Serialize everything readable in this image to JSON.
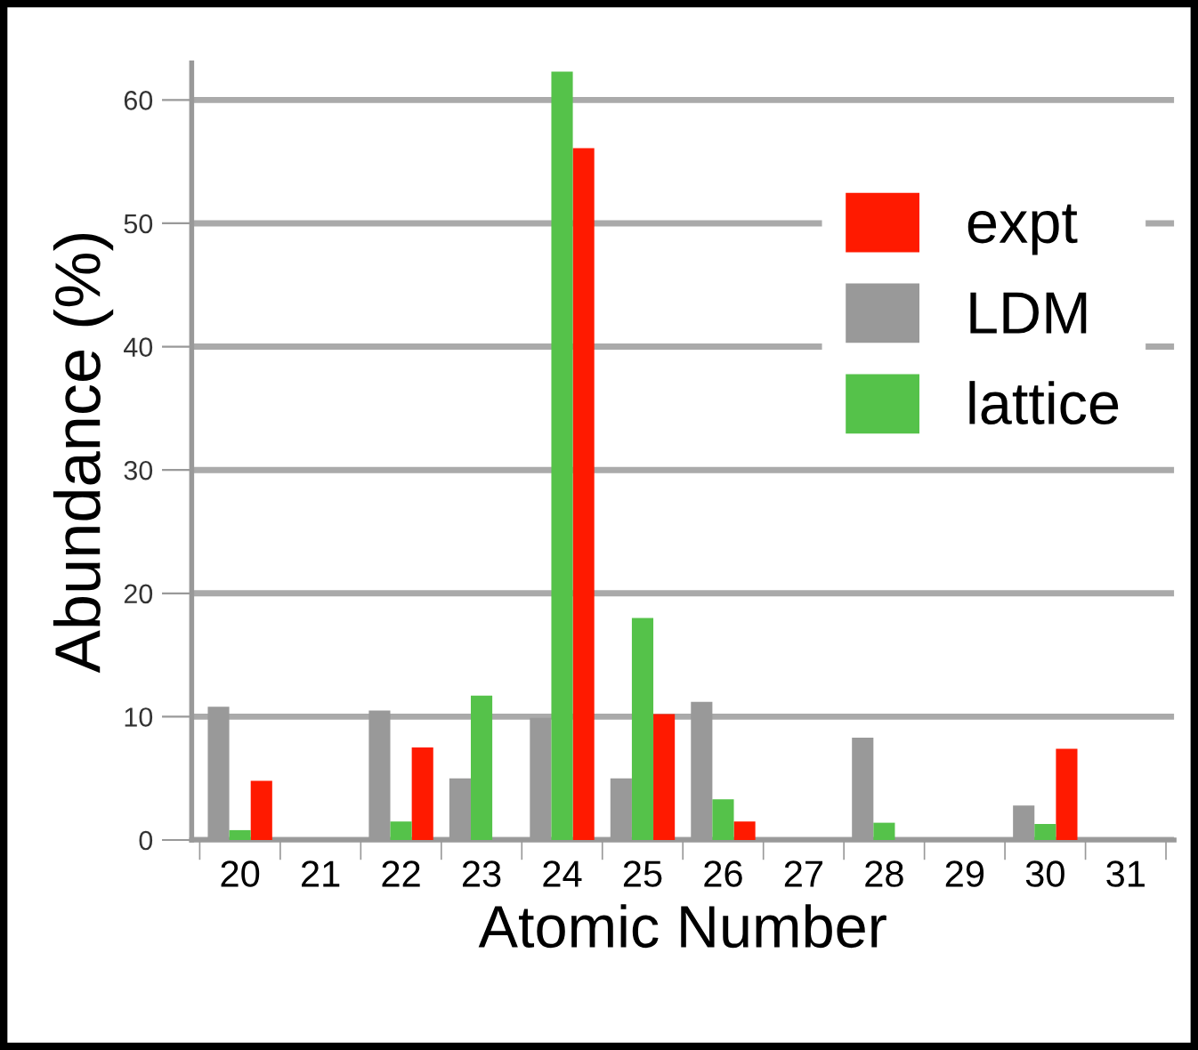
{
  "chart_data": {
    "type": "bar",
    "xlabel": "Atomic Number",
    "ylabel": "Abundance (%)",
    "categories": [
      "20",
      "21",
      "22",
      "23",
      "24",
      "25",
      "26",
      "27",
      "28",
      "29",
      "30",
      "31"
    ],
    "series": [
      {
        "name": "expt",
        "color": "#ff1a00",
        "values": [
          4.8,
          null,
          7.5,
          null,
          56.1,
          10.2,
          1.5,
          null,
          null,
          null,
          7.4,
          null
        ]
      },
      {
        "name": "LDM",
        "color": "#999999",
        "values": [
          10.8,
          null,
          10.5,
          5,
          9.9,
          5,
          11.2,
          null,
          8.3,
          null,
          2.8,
          null
        ]
      },
      {
        "name": "lattice",
        "color": "#55c24a",
        "values": [
          0.8,
          null,
          1.5,
          11.7,
          62.3,
          18,
          3.3,
          null,
          1.4,
          null,
          1.3,
          null
        ]
      }
    ],
    "ylim": [
      0,
      63
    ],
    "yticks": [
      0,
      10,
      20,
      30,
      40,
      50,
      60
    ],
    "grid": "y",
    "legend": "top right"
  }
}
